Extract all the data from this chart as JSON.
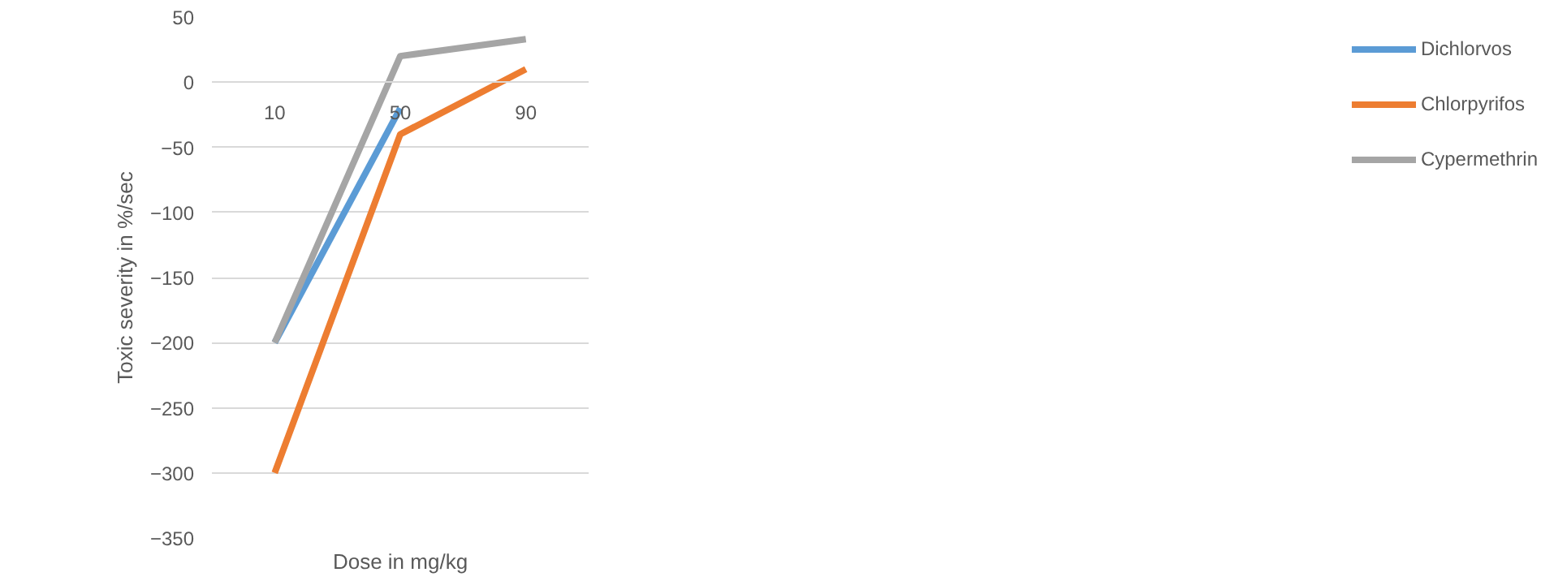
{
  "chart_data": {
    "type": "line",
    "xlabel": "Dose in mg/kg",
    "ylabel": "Toxic severity in %/sec",
    "categories": [
      "10",
      "50",
      "90"
    ],
    "series": [
      {
        "name": "Dichlorvos",
        "color": "#5b9bd5",
        "values": [
          -200,
          -20,
          null
        ]
      },
      {
        "name": "Chlorpyrifos",
        "color": "#ed7d31",
        "values": [
          -300,
          -40,
          10
        ]
      },
      {
        "name": "Cypermethrin",
        "color": "#a5a5a5",
        "values": [
          -200,
          20,
          33
        ]
      }
    ],
    "ylim": [
      -350,
      50
    ],
    "yticks": [
      -350,
      -300,
      -250,
      -200,
      -150,
      -100,
      -50,
      0,
      50
    ],
    "grid": "y",
    "legend": "right",
    "marker": "none",
    "line_style": "solid"
  }
}
